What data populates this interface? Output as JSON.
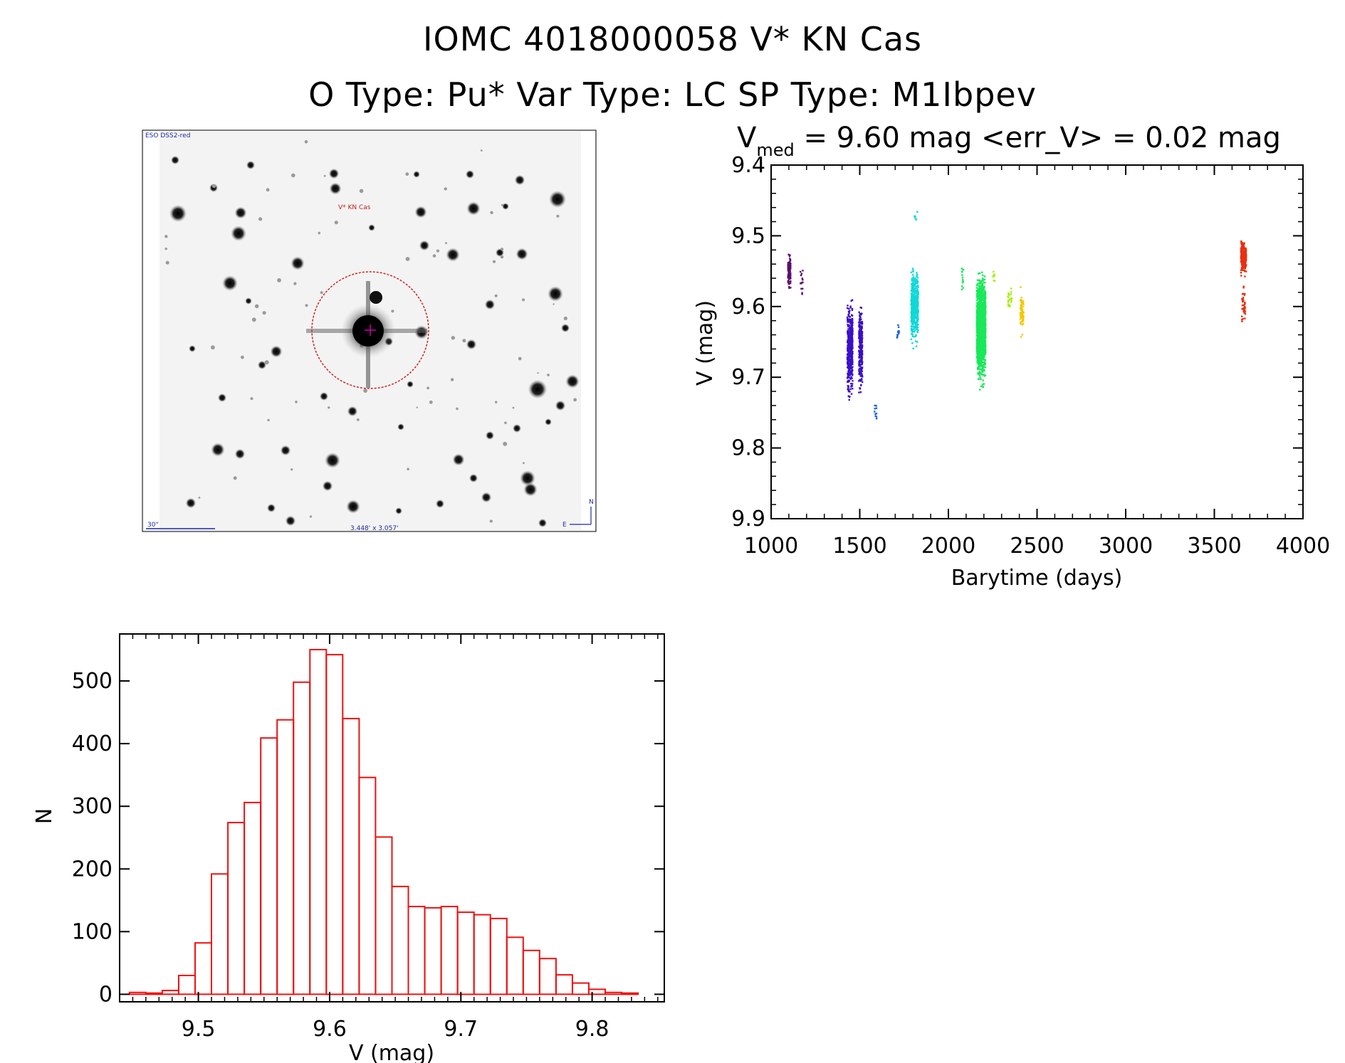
{
  "figure": {
    "title_line1": "IOMC 4018000058    V* KN Cas",
    "title_line2": "O Type: Pu*  Var Type: LC  SP Type: M1Ibpev"
  },
  "sky_image": {
    "survey_label": "ESO DSS2-red",
    "target_label": "V* KN Cas",
    "scale_label": "30\"",
    "fov_label": "3.448' x 3.057'",
    "compass_north": "N",
    "compass_east": "E",
    "marker_color": "#cc2222"
  },
  "chart_data": [
    {
      "type": "scatter",
      "title_prefix": "V",
      "title_subscript": "med",
      "title_rest": " = 9.60 mag <err_V> = 0.02 mag",
      "xlabel": "Barytime (days)",
      "ylabel": "V (mag)",
      "xlim": [
        1000,
        4000
      ],
      "ylim": [
        9.4,
        9.9
      ],
      "y_inverted": true,
      "xticks": [
        1000,
        1500,
        2000,
        2500,
        3000,
        3500,
        4000
      ],
      "yticks": [
        9.4,
        9.5,
        9.6,
        9.7,
        9.8,
        9.9
      ],
      "ytick_labels": [
        "9.4",
        "9.5",
        "9.6",
        "9.7",
        "9.8",
        "9.9"
      ],
      "series": [
        {
          "color": "#5a0f6e",
          "groups": [
            {
              "x": [
                1095,
                1110
              ],
              "y_mid": 9.55,
              "y_spread": 0.045,
              "n": 110
            },
            {
              "x": [
                1165,
                1180
              ],
              "y_mid": 9.57,
              "y_spread": 0.04,
              "n": 14
            }
          ]
        },
        {
          "color": "#3b10c8",
          "groups": [
            {
              "x": [
                1430,
                1460
              ],
              "y_mid": 9.66,
              "y_spread": 0.12,
              "n": 520
            },
            {
              "x": [
                1495,
                1515
              ],
              "y_mid": 9.66,
              "y_spread": 0.11,
              "n": 260
            }
          ]
        },
        {
          "color": "#1b63e0",
          "groups": [
            {
              "x": [
                1580,
                1595
              ],
              "y_mid": 9.75,
              "y_spread": 0.025,
              "n": 10
            },
            {
              "x": [
                1710,
                1722
              ],
              "y_mid": 9.64,
              "y_spread": 0.03,
              "n": 12
            }
          ]
        },
        {
          "color": "#10d8d8",
          "groups": [
            {
              "x": [
                1790,
                1830
              ],
              "y_mid": 9.6,
              "y_spread": 0.09,
              "n": 520
            },
            {
              "x": [
                1805,
                1825
              ],
              "y_mid": 9.47,
              "y_spread": 0.02,
              "n": 6
            }
          ]
        },
        {
          "color": "#19e85a",
          "groups": [
            {
              "x": [
                2075,
                2085
              ],
              "y_mid": 9.56,
              "y_spread": 0.04,
              "n": 14
            },
            {
              "x": [
                2160,
                2210
              ],
              "y_mid": 9.63,
              "y_spread": 0.13,
              "n": 1700
            }
          ]
        },
        {
          "color": "#a8ee10",
          "groups": [
            {
              "x": [
                2250,
                2262
              ],
              "y_mid": 9.56,
              "y_spread": 0.02,
              "n": 10
            },
            {
              "x": [
                2335,
                2360
              ],
              "y_mid": 9.59,
              "y_spread": 0.035,
              "n": 24
            }
          ]
        },
        {
          "color": "#f2c800",
          "groups": [
            {
              "x": [
                2405,
                2425
              ],
              "y_mid": 9.61,
              "y_spread": 0.06,
              "n": 70
            }
          ]
        },
        {
          "color": "#e83010",
          "groups": [
            {
              "x": [
                3650,
                3680
              ],
              "y_mid": 9.53,
              "y_spread": 0.04,
              "n": 320
            },
            {
              "x": [
                3655,
                3675
              ],
              "y_mid": 9.6,
              "y_spread": 0.05,
              "n": 40
            }
          ]
        }
      ]
    },
    {
      "type": "bar",
      "subtype": "histogram",
      "xlabel": "V (mag)",
      "ylabel": "N",
      "xlim": [
        9.44,
        9.855
      ],
      "ylim": [
        -12,
        575
      ],
      "xticks": [
        9.5,
        9.6,
        9.7,
        9.8
      ],
      "xtick_labels": [
        "9.5",
        "9.6",
        "9.7",
        "9.8"
      ],
      "yticks": [
        0,
        100,
        200,
        300,
        400,
        500
      ],
      "ytick_labels": [
        "0",
        "100",
        "200",
        "300",
        "400",
        "500"
      ],
      "bar_color": "#ee1111",
      "bin_width": 0.0125,
      "bin_start": 9.4475,
      "values": [
        3,
        2,
        6,
        30,
        82,
        192,
        274,
        306,
        409,
        438,
        498,
        550,
        542,
        440,
        346,
        251,
        172,
        140,
        138,
        140,
        131,
        127,
        121,
        91,
        70,
        57,
        31,
        18,
        8,
        3,
        2
      ]
    }
  ]
}
